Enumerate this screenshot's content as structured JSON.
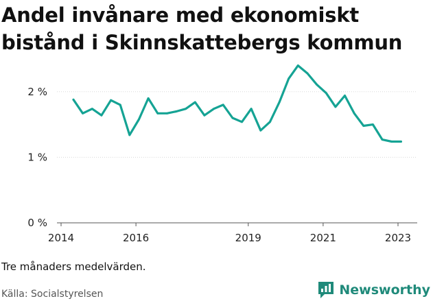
{
  "title": "Andel invånare med ekonomiskt bistånd i Skinnskattebergs kommun",
  "note": "Tre månaders medelvärden.",
  "source": "Källa: Socialstyrelsen",
  "brand": {
    "name": "Newsworthy",
    "icon": "newsworthy-chart-icon",
    "color": "#1f8a7a"
  },
  "chart_data": {
    "type": "line",
    "xlabel": "",
    "ylabel": "",
    "color": "#15a394",
    "xlim": [
      2014.0,
      2023.5
    ],
    "ylim": [
      0,
      2.5
    ],
    "x_ticks": [
      {
        "value": 2014,
        "label": "2014"
      },
      {
        "value": 2016,
        "label": "2016"
      },
      {
        "value": 2019,
        "label": "2019"
      },
      {
        "value": 2021,
        "label": "2021"
      },
      {
        "value": 2023,
        "label": "2023"
      }
    ],
    "y_ticks": [
      {
        "value": 0,
        "label": "0 %"
      },
      {
        "value": 1,
        "label": "1 %"
      },
      {
        "value": 2,
        "label": "2 %"
      }
    ],
    "grid": "horizontal",
    "series": [
      {
        "x": [
          2014.33,
          2014.58,
          2014.83,
          2015.08,
          2015.33,
          2015.58,
          2015.83,
          2016.08,
          2016.33,
          2016.58,
          2016.83,
          2017.08,
          2017.33,
          2017.58,
          2017.83,
          2018.08,
          2018.33,
          2018.58,
          2018.83,
          2019.08,
          2019.33,
          2019.58,
          2019.83,
          2020.08,
          2020.33,
          2020.58,
          2020.83,
          2021.08,
          2021.33,
          2021.58,
          2021.83,
          2022.08,
          2022.33,
          2022.58,
          2022.83,
          2023.08
        ],
        "values": [
          1.88,
          1.67,
          1.74,
          1.64,
          1.87,
          1.8,
          1.34,
          1.58,
          1.9,
          1.67,
          1.67,
          1.7,
          1.74,
          1.84,
          1.64,
          1.74,
          1.8,
          1.6,
          1.54,
          1.74,
          1.41,
          1.54,
          1.84,
          2.2,
          2.4,
          2.28,
          2.11,
          1.98,
          1.77,
          1.94,
          1.67,
          1.48,
          1.5,
          1.27,
          1.24,
          1.24
        ]
      }
    ]
  }
}
